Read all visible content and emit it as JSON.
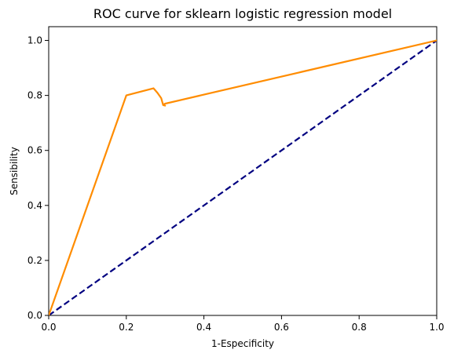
{
  "chart_data": {
    "type": "line",
    "title": "ROC curve for sklearn logistic regression model",
    "xlabel": "1-Especificity",
    "ylabel": "Sensibility",
    "xlim": [
      0.0,
      1.0
    ],
    "ylim": [
      0.0,
      1.05
    ],
    "xticks": [
      "0.0",
      "0.2",
      "0.4",
      "0.6",
      "0.8",
      "1.0"
    ],
    "yticks": [
      "0.0",
      "0.2",
      "0.4",
      "0.6",
      "0.8",
      "1.0"
    ],
    "grid": false,
    "series": [
      {
        "style": "solid",
        "color": "#ff8c00",
        "x": [
          0.0,
          0.2,
          0.27,
          0.28,
          0.29,
          0.295,
          0.3,
          0.295,
          0.3,
          1.0
        ],
        "y": [
          0.0,
          0.8,
          0.826,
          0.81,
          0.79,
          0.765,
          0.763,
          0.766,
          0.77,
          1.0
        ]
      },
      {
        "style": "dashed",
        "color": "#000080",
        "x": [
          0.0,
          1.0
        ],
        "y": [
          0.0,
          1.0
        ]
      }
    ]
  }
}
